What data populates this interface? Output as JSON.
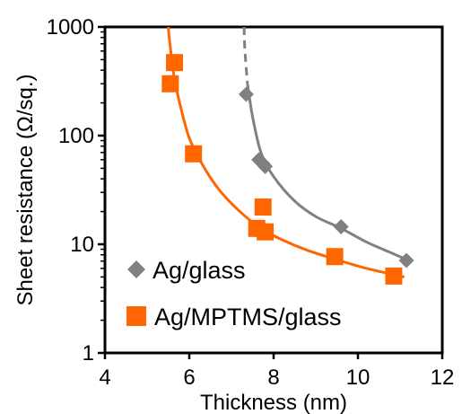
{
  "chart_data": {
    "type": "scatter",
    "xlabel": "Thickness (nm)",
    "ylabel": "Sheet resistance (Ω/sq.)",
    "xlim": [
      4,
      12
    ],
    "ylim": [
      1,
      1000
    ],
    "yscale": "log",
    "x_ticks": [
      4,
      6,
      8,
      10,
      12
    ],
    "y_ticks": [
      1,
      10,
      100,
      1000
    ],
    "grid": false,
    "legend_position": "bottom-left",
    "series": [
      {
        "name": "Ag/glass",
        "marker": "diamond",
        "color": "#808080",
        "points": [
          [
            7.35,
            240
          ],
          [
            7.65,
            60
          ],
          [
            7.8,
            52
          ],
          [
            7.75,
            55
          ],
          [
            9.6,
            14.5
          ],
          [
            11.15,
            7.1
          ]
        ],
        "fit": [
          [
            7.3,
            1000
          ],
          [
            7.32,
            600
          ],
          [
            7.38,
            300
          ],
          [
            7.5,
            150
          ],
          [
            7.7,
            70
          ],
          [
            8.0,
            42
          ],
          [
            8.5,
            25
          ],
          [
            9.0,
            18
          ],
          [
            9.6,
            14
          ],
          [
            10.2,
            10.5
          ],
          [
            10.8,
            8.3
          ],
          [
            11.2,
            7.1
          ]
        ],
        "fit_dashed_until_x": 7.38
      },
      {
        "name": "Ag/MPTMS/glass",
        "marker": "square",
        "color": "#FF6600",
        "points": [
          [
            5.55,
            300
          ],
          [
            5.65,
            470
          ],
          [
            6.1,
            68
          ],
          [
            7.6,
            14
          ],
          [
            7.75,
            22
          ],
          [
            7.8,
            13
          ],
          [
            9.45,
            7.7
          ],
          [
            10.85,
            5.1
          ]
        ],
        "fit": [
          [
            5.5,
            1000
          ],
          [
            5.55,
            650
          ],
          [
            5.65,
            330
          ],
          [
            5.8,
            180
          ],
          [
            6.0,
            95
          ],
          [
            6.3,
            55
          ],
          [
            6.7,
            32
          ],
          [
            7.2,
            20
          ],
          [
            7.7,
            14
          ],
          [
            8.2,
            11
          ],
          [
            8.8,
            8.8
          ],
          [
            9.5,
            7.2
          ],
          [
            10.2,
            6.0
          ],
          [
            10.9,
            5.2
          ],
          [
            11.1,
            5.0
          ]
        ]
      }
    ]
  }
}
